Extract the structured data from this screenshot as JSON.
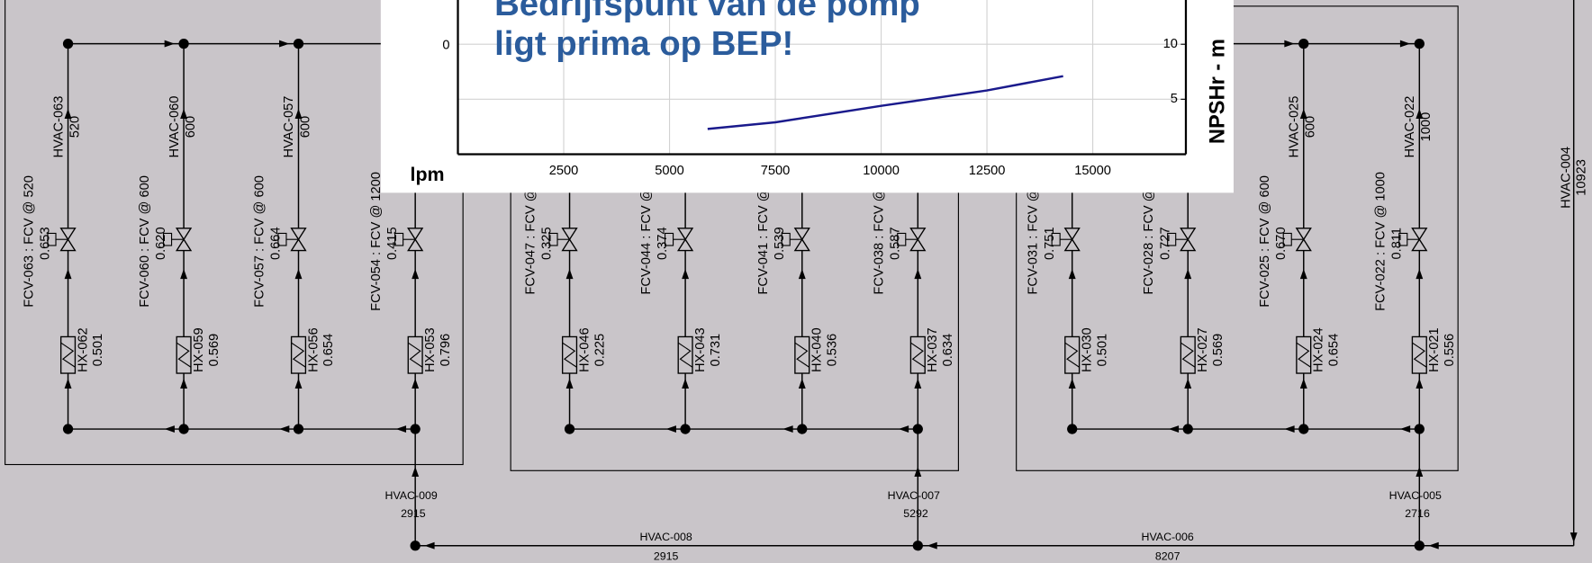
{
  "chart_data": {
    "type": "line",
    "title": "Bedrijfspunt van de pomp",
    "subtitle": "ligt prima op BEP!",
    "x_label": "lpm",
    "y2_label": "NPSHr - m",
    "yticks": [
      0
    ],
    "x": [
      5900,
      7500,
      10000,
      12500,
      14300
    ],
    "series": [
      {
        "color": "#1a1a8c",
        "axis": "y2",
        "values": [
          2.3,
          2.9,
          4.4,
          5.8,
          7.1
        ]
      }
    ],
    "xlim": [
      0,
      17200
    ],
    "xticks": [
      2500,
      5000,
      7500,
      10000,
      12500,
      15000
    ],
    "y2lim": [
      0,
      14.2
    ],
    "y2ticks": [
      5,
      10
    ],
    "grid": true
  },
  "diagram": {
    "groups": [
      {
        "branches": [
          {
            "pipe": "HVAC-063",
            "flow": "520",
            "valve": "FCV-063 : FCV @ 520",
            "opening": "0.653",
            "hx": "HX-062",
            "hx_value": "0.501"
          },
          {
            "pipe": "HVAC-060",
            "flow": "600",
            "valve": "FCV-060 : FCV @ 600",
            "opening": "0.620",
            "hx": "HX-059",
            "hx_value": "0.569"
          },
          {
            "pipe": "HVAC-057",
            "flow": "600",
            "valve": "FCV-057 : FCV @ 600",
            "opening": "0.664",
            "hx": "HX-056",
            "hx_value": "0.654"
          },
          {
            "valve": "FCV-054 : FCV @ 1200",
            "opening": "0.415",
            "hx": "HX-053",
            "hx_value": "0.796"
          }
        ]
      },
      {
        "branches": [
          {
            "valve": "FCV-047 : FCV @",
            "opening": "0.325",
            "hx": "HX-046",
            "hx_value": "0.225"
          },
          {
            "valve": "FCV-044 : FCV @",
            "opening": "0.374",
            "hx": "HX-043",
            "hx_value": "0.731"
          },
          {
            "valve": "FCV-041 : FCV @",
            "opening": "0.539",
            "hx": "HX-040",
            "hx_value": "0.536"
          },
          {
            "valve": "FCV-038 : FCV @",
            "opening": "0.587",
            "hx": "HX-037",
            "hx_value": "0.634"
          }
        ]
      },
      {
        "branches": [
          {
            "valve": "FCV-031 : FCV @",
            "opening": "0.751",
            "hx": "HX-030",
            "hx_value": "0.501"
          },
          {
            "valve": "FCV-028 : FCV @",
            "opening": "0.727",
            "hx": "HX-027",
            "hx_value": "0.569"
          },
          {
            "pipe": "HVAC-025",
            "flow": "600",
            "valve": "FCV-025 : FCV @ 600",
            "opening": "0.670",
            "hx": "HX-024",
            "hx_value": "0.654"
          },
          {
            "pipe": "HVAC-022",
            "flow": "1000",
            "valve": "FCV-022 : FCV @ 1000",
            "opening": "0.811",
            "hx": "HX-021",
            "hx_value": "0.556"
          }
        ]
      }
    ],
    "supply": {
      "pipe": "HVAC-004",
      "flow": "10923"
    },
    "risers": [
      {
        "pipe": "HVAC-009",
        "flow": "2915"
      },
      {
        "pipe": "HVAC-007",
        "flow": "5292"
      },
      {
        "pipe": "HVAC-005",
        "flow": "2716"
      }
    ],
    "headers": [
      {
        "pipe": "HVAC-008",
        "flow": "2915"
      },
      {
        "pipe": "HVAC-006",
        "flow": "8207"
      }
    ]
  }
}
